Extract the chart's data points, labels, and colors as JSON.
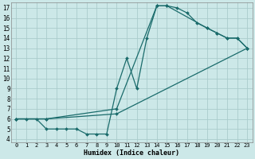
{
  "xlabel": "Humidex (Indice chaleur)",
  "bg_color": "#cce8e8",
  "grid_color": "#aacccc",
  "line_color": "#1a6b6b",
  "xlim_min": -0.5,
  "xlim_max": 23.5,
  "ylim_min": 3.7,
  "ylim_max": 17.5,
  "xticks": [
    0,
    1,
    2,
    3,
    4,
    5,
    6,
    7,
    8,
    9,
    10,
    11,
    12,
    13,
    14,
    15,
    16,
    17,
    18,
    19,
    20,
    21,
    22,
    23
  ],
  "yticks": [
    4,
    5,
    6,
    7,
    8,
    9,
    10,
    11,
    12,
    13,
    14,
    15,
    16,
    17
  ],
  "line1_x": [
    0,
    1,
    2,
    3,
    4,
    5,
    6,
    7,
    8,
    9,
    10,
    11,
    12,
    13,
    14,
    15,
    16,
    17,
    18,
    19,
    20,
    21,
    22,
    23
  ],
  "line1_y": [
    6,
    6,
    6,
    5,
    5,
    5,
    5,
    4.5,
    4.5,
    4.5,
    9,
    12,
    9,
    14,
    17.2,
    17.2,
    17,
    16.5,
    15.5,
    15,
    14.5,
    14,
    14,
    13
  ],
  "line2_x": [
    0,
    3,
    10,
    14,
    15,
    19,
    20,
    21,
    22,
    23
  ],
  "line2_y": [
    6,
    6,
    7,
    17.2,
    17.2,
    15,
    14.5,
    14,
    14,
    13
  ],
  "line3_x": [
    0,
    3,
    10,
    23
  ],
  "line3_y": [
    6,
    6,
    6.5,
    13
  ],
  "marker_size": 2.0,
  "line_width": 0.9,
  "xlabel_fontsize": 6.0,
  "tick_fontsize": 5.0
}
